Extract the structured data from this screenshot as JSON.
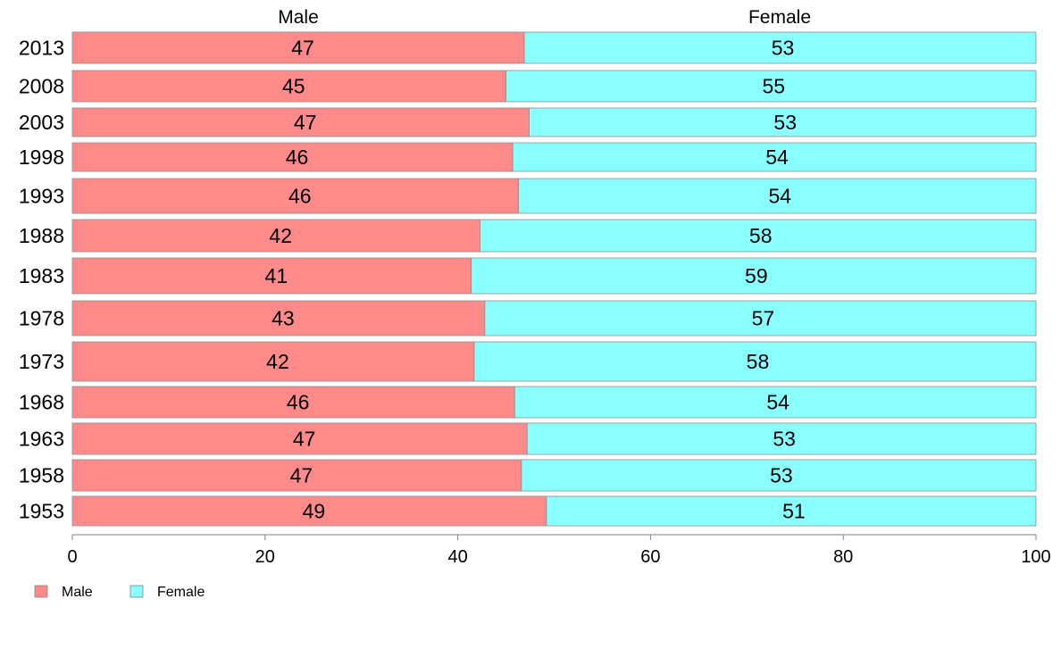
{
  "chart_data": {
    "type": "bar",
    "orientation": "horizontal",
    "stacked": true,
    "title": "",
    "xlabel": "",
    "ylabel": "",
    "xlim": [
      0,
      100
    ],
    "x_ticks": [
      "0",
      "20",
      "40",
      "60",
      "80",
      "100"
    ],
    "column_headers": [
      "Male",
      "Female"
    ],
    "categories": [
      "2013",
      "2008",
      "2003",
      "1998",
      "1993",
      "1988",
      "1983",
      "1978",
      "1973",
      "1968",
      "1963",
      "1958",
      "1953"
    ],
    "series": [
      {
        "name": "Male",
        "color": "#ff8a8a",
        "values": [
          47,
          45,
          47,
          46,
          46,
          42,
          41,
          43,
          42,
          46,
          47,
          47,
          49
        ],
        "bar_values": [
          46.9,
          45.0,
          47.4,
          45.7,
          46.3,
          42.3,
          41.4,
          42.8,
          41.7,
          45.9,
          47.2,
          46.6,
          49.2
        ]
      },
      {
        "name": "Female",
        "color": "#8affff",
        "values": [
          53,
          55,
          53,
          54,
          54,
          58,
          59,
          57,
          58,
          54,
          53,
          53,
          51
        ]
      }
    ],
    "legend": {
      "position": "bottom-left",
      "entries": [
        "Male",
        "Female"
      ]
    },
    "grid": false
  }
}
